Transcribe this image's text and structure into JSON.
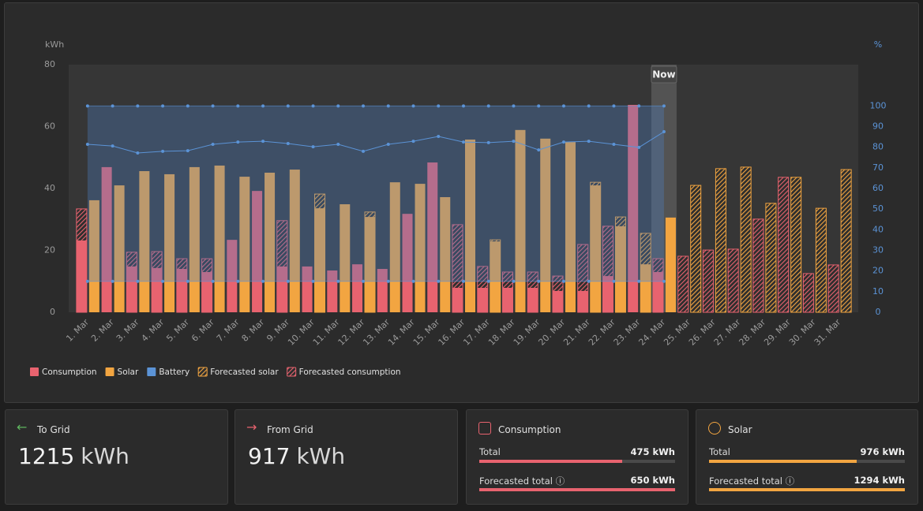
{
  "chart_data": {
    "type": "bar",
    "ylabel": "kWh",
    "y2label": "%",
    "categories": [
      "1. Mar",
      "2. Mar",
      "3. Mar",
      "4. Mar",
      "5. Mar",
      "6. Mar",
      "7. Mar",
      "8. Mar",
      "9. Mar",
      "10. Mar",
      "11. Mar",
      "12. Mar",
      "13. Mar",
      "14. Mar",
      "15. Mar",
      "16. Mar",
      "17. Mar",
      "18. Mar",
      "19. Mar",
      "20. Mar",
      "21. Mar",
      "22. Mar",
      "23. Mar",
      "24. Mar",
      "25. Mar",
      "26. Mar",
      "27. Mar",
      "28. Mar",
      "29. Mar",
      "30. Mar",
      "31. Mar"
    ],
    "ylim": [
      0,
      80
    ],
    "yticks": [
      0,
      20,
      40,
      60,
      80
    ],
    "y2lim": [
      0,
      120
    ],
    "y2ticks": [
      0,
      10,
      20,
      30,
      40,
      50,
      60,
      70,
      80,
      90,
      100
    ],
    "now": {
      "label": "Now",
      "category": "24. Mar"
    },
    "series": [
      {
        "name": "Consumption",
        "color": "#e8636f",
        "values": [
          23.2,
          46.9,
          14.8,
          14.3,
          14.0,
          13.0,
          23.4,
          39.2,
          14.8,
          14.8,
          13.5,
          15.5,
          14.0,
          31.8,
          48.4,
          7.9,
          7.9,
          7.9,
          7.9,
          6.9,
          6.9,
          11.7,
          67.0,
          13.0,
          null,
          null,
          null,
          null,
          null,
          null,
          null
        ]
      },
      {
        "name": "Solar",
        "color": "#f2a541",
        "values": [
          36.2,
          41.0,
          45.6,
          44.6,
          46.9,
          47.4,
          43.8,
          45.1,
          46.1,
          33.6,
          34.9,
          30.8,
          42.0,
          41.5,
          37.2,
          55.8,
          22.9,
          58.9,
          56.1,
          55.0,
          41.0,
          27.8,
          15.5,
          30.6,
          null,
          null,
          null,
          null,
          null,
          null,
          null
        ]
      },
      {
        "name": "Battery",
        "color": "#5b93d6",
        "axis": "y2",
        "values": [
          81.4,
          80.6,
          77.2,
          78.0,
          78.3,
          81.4,
          82.5,
          82.9,
          81.8,
          80.2,
          81.4,
          78.0,
          81.4,
          82.9,
          85.2,
          82.5,
          82.2,
          82.9,
          78.7,
          82.5,
          82.9,
          81.4,
          79.9,
          87.5,
          null,
          null,
          null,
          null,
          null,
          null,
          null
        ],
        "upper": [
          100,
          100,
          100,
          100,
          100,
          100,
          100,
          100,
          100,
          100,
          100,
          100,
          100,
          100,
          100,
          100,
          100,
          100,
          100,
          100,
          100,
          100,
          100,
          100,
          null,
          null,
          null,
          null,
          null,
          null,
          null
        ],
        "lower": [
          15,
          15,
          15,
          15,
          15,
          15,
          15,
          15,
          15,
          15,
          15,
          15,
          15,
          15,
          15,
          15,
          15,
          15,
          15,
          15,
          15,
          15,
          15,
          15,
          null,
          null,
          null,
          null,
          null,
          null,
          null
        ]
      },
      {
        "name": "Forecasted solar",
        "color": "#f2a541",
        "hatched": true,
        "values": [
          null,
          null,
          null,
          null,
          null,
          null,
          null,
          null,
          null,
          38.2,
          null,
          32.4,
          null,
          null,
          null,
          null,
          23.4,
          null,
          null,
          null,
          42.0,
          30.8,
          25.5,
          null,
          41.0,
          46.4,
          46.9,
          35.2,
          43.6,
          33.6,
          46.1
        ]
      },
      {
        "name": "Forecasted consumption",
        "color": "#e8636f",
        "hatched": true,
        "values": [
          33.4,
          null,
          19.4,
          19.6,
          17.3,
          17.3,
          null,
          null,
          29.6,
          null,
          null,
          null,
          null,
          null,
          null,
          28.3,
          14.8,
          13.0,
          13.0,
          11.7,
          21.9,
          27.8,
          null,
          17.3,
          18.1,
          20.1,
          20.4,
          30.1,
          43.6,
          12.5,
          15.3
        ]
      }
    ]
  },
  "grid_cards": [
    {
      "title": "To Grid",
      "value": 1215,
      "unit": "kWh"
    },
    {
      "title": "From Grid",
      "value": 917,
      "unit": "kWh"
    }
  ],
  "total_cards": [
    {
      "title": "Consumption",
      "color": "#e8636f",
      "rows": [
        {
          "label": "Total",
          "value": 475,
          "unit": "kWh"
        },
        {
          "label": "Forecasted total",
          "value": 650,
          "unit": "kWh"
        }
      ]
    },
    {
      "title": "Solar",
      "color": "#f2a541",
      "rows": [
        {
          "label": "Total",
          "value": 976,
          "unit": "kWh"
        },
        {
          "label": "Forecasted total",
          "value": 1294,
          "unit": "kWh"
        }
      ]
    }
  ]
}
